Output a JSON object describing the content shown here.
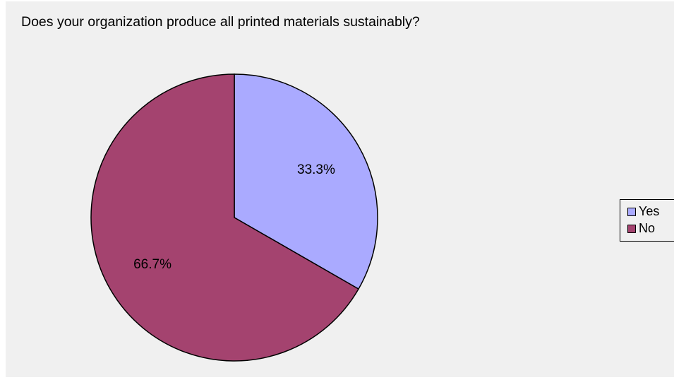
{
  "chart_data": {
    "type": "pie",
    "title": "Does your organization produce all printed materials sustainably?",
    "categories": [
      "Yes",
      "No"
    ],
    "values": [
      33.3,
      66.7
    ],
    "labels": [
      "33.3%",
      "66.7%"
    ],
    "colors": [
      "#aaaaff",
      "#a4436f"
    ],
    "legend_position": "right"
  }
}
